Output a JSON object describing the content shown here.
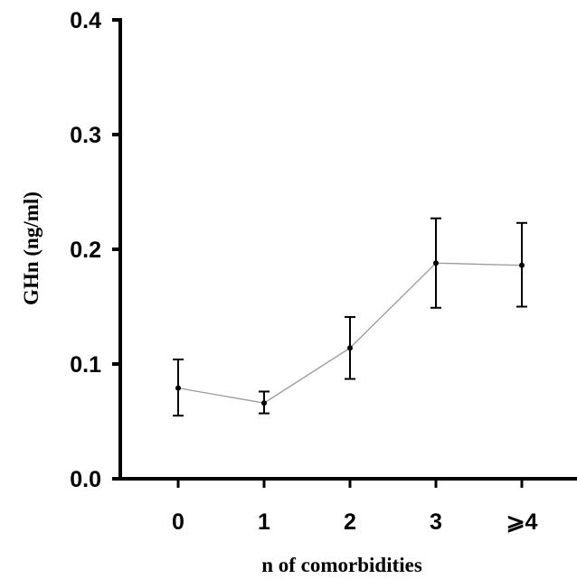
{
  "chart_data": {
    "type": "line",
    "title": "",
    "xlabel": "n of comorbidities",
    "ylabel": "GHn (ng/ml)",
    "categories": [
      "0",
      "1",
      "2",
      "3",
      "⩾4"
    ],
    "yticks": [
      "0.0",
      "0.1",
      "0.2",
      "0.3",
      "0.4"
    ],
    "ylim": [
      0,
      0.4
    ],
    "grid": false,
    "legend": "none",
    "series": [
      {
        "values": [
          0.079,
          0.066,
          0.114,
          0.188,
          0.186
        ],
        "error_low": [
          0.055,
          0.057,
          0.087,
          0.149,
          0.15
        ],
        "error_high": [
          0.104,
          0.076,
          0.141,
          0.227,
          0.223
        ],
        "color": "#000000",
        "line_color": "#9a9a9a"
      }
    ]
  }
}
